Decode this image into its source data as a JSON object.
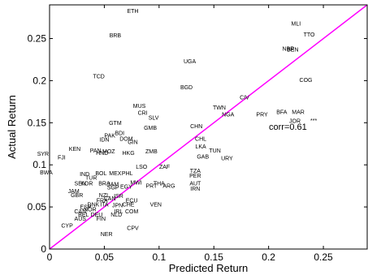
{
  "chart_data": {
    "type": "scatter",
    "title": "",
    "xlabel": "Predicted Return",
    "ylabel": "Actual Return",
    "xlim": [
      0,
      0.29
    ],
    "ylim": [
      0,
      0.29
    ],
    "xticks": [
      0,
      0.05,
      0.1,
      0.15,
      0.2,
      0.25
    ],
    "yticks": [
      0,
      0.05,
      0.1,
      0.15,
      0.2,
      0.25
    ],
    "xtick_labels": [
      "0",
      "0.05",
      "0.1",
      "0.15",
      "0.2",
      "0.25"
    ],
    "ytick_labels": [
      "0",
      "0.05",
      "0.1",
      "0.15",
      "0.2",
      "0.25"
    ],
    "grid": false,
    "legend": "none",
    "reference_line": {
      "x": [
        0,
        0.29
      ],
      "y": [
        0,
        0.29
      ],
      "color": "#ff00ff"
    },
    "annotation": "corr=0.61",
    "marker_text": "***",
    "points": [
      {
        "label": "ETH",
        "x": 0.076,
        "y": 0.283
      },
      {
        "label": "BRB",
        "x": 0.06,
        "y": 0.254
      },
      {
        "label": "MLI",
        "x": 0.225,
        "y": 0.268
      },
      {
        "label": "TTO",
        "x": 0.237,
        "y": 0.255
      },
      {
        "label": "NBR",
        "x": 0.218,
        "y": 0.238
      },
      {
        "label": "BEN",
        "x": 0.222,
        "y": 0.237
      },
      {
        "label": "UGA",
        "x": 0.128,
        "y": 0.223
      },
      {
        "label": "TCD",
        "x": 0.045,
        "y": 0.205
      },
      {
        "label": "COG",
        "x": 0.234,
        "y": 0.201
      },
      {
        "label": "BGD",
        "x": 0.125,
        "y": 0.192
      },
      {
        "label": "CIV",
        "x": 0.178,
        "y": 0.18
      },
      {
        "label": "MUS",
        "x": 0.082,
        "y": 0.17
      },
      {
        "label": "TWN",
        "x": 0.155,
        "y": 0.168
      },
      {
        "label": "BFA",
        "x": 0.212,
        "y": 0.163
      },
      {
        "label": "MAR",
        "x": 0.227,
        "y": 0.163
      },
      {
        "label": "CRI",
        "x": 0.085,
        "y": 0.162
      },
      {
        "label": "NGA",
        "x": 0.163,
        "y": 0.16
      },
      {
        "label": "PRY",
        "x": 0.194,
        "y": 0.16
      },
      {
        "label": "SLV",
        "x": 0.095,
        "y": 0.156
      },
      {
        "label": "JOR",
        "x": 0.224,
        "y": 0.152
      },
      {
        "label": "GTM",
        "x": 0.06,
        "y": 0.15
      },
      {
        "label": "GMB",
        "x": 0.092,
        "y": 0.144
      },
      {
        "label": "CHN",
        "x": 0.134,
        "y": 0.146
      },
      {
        "label": "BDI",
        "x": 0.064,
        "y": 0.138
      },
      {
        "label": "PAK",
        "x": 0.055,
        "y": 0.135
      },
      {
        "label": "IDN",
        "x": 0.05,
        "y": 0.13
      },
      {
        "label": "DOM",
        "x": 0.07,
        "y": 0.131
      },
      {
        "label": "GIN",
        "x": 0.076,
        "y": 0.127
      },
      {
        "label": "CHL",
        "x": 0.138,
        "y": 0.131
      },
      {
        "label": "LKA",
        "x": 0.138,
        "y": 0.122
      },
      {
        "label": "KEN",
        "x": 0.023,
        "y": 0.119
      },
      {
        "label": "PAN",
        "x": 0.042,
        "y": 0.117
      },
      {
        "label": "MOZ",
        "x": 0.054,
        "y": 0.116
      },
      {
        "label": "HND",
        "x": 0.048,
        "y": 0.114
      },
      {
        "label": "ZMB",
        "x": 0.093,
        "y": 0.116
      },
      {
        "label": "TUN",
        "x": 0.151,
        "y": 0.117
      },
      {
        "label": "SYR",
        "x": -0.006,
        "y": 0.113
      },
      {
        "label": "HKG",
        "x": 0.072,
        "y": 0.114
      },
      {
        "label": "FJI",
        "x": 0.011,
        "y": 0.109
      },
      {
        "label": "GAB",
        "x": 0.14,
        "y": 0.11
      },
      {
        "label": "URY",
        "x": 0.162,
        "y": 0.108
      },
      {
        "label": "LSO",
        "x": 0.084,
        "y": 0.098
      },
      {
        "label": "ZAF",
        "x": 0.105,
        "y": 0.098
      },
      {
        "label": "BWA",
        "x": -0.003,
        "y": 0.091
      },
      {
        "label": "IND",
        "x": 0.032,
        "y": 0.089
      },
      {
        "label": "BOL",
        "x": 0.047,
        "y": 0.09
      },
      {
        "label": "MEX",
        "x": 0.06,
        "y": 0.09
      },
      {
        "label": "PHL",
        "x": 0.071,
        "y": 0.09
      },
      {
        "label": "TZA",
        "x": 0.133,
        "y": 0.093
      },
      {
        "label": "TUR",
        "x": 0.038,
        "y": 0.085
      },
      {
        "label": "PER",
        "x": 0.133,
        "y": 0.087
      },
      {
        "label": "SEN",
        "x": 0.028,
        "y": 0.078
      },
      {
        "label": "KOR",
        "x": 0.034,
        "y": 0.078
      },
      {
        "label": "BRA",
        "x": 0.05,
        "y": 0.078
      },
      {
        "label": "JAM",
        "x": 0.058,
        "y": 0.077
      },
      {
        "label": "MWI",
        "x": 0.079,
        "y": 0.079
      },
      {
        "label": "THA",
        "x": 0.1,
        "y": 0.078
      },
      {
        "label": "AUT",
        "x": 0.133,
        "y": 0.078
      },
      {
        "label": "PRT",
        "x": 0.093,
        "y": 0.075
      },
      {
        "label": "ARG",
        "x": 0.109,
        "y": 0.075
      },
      {
        "label": "SGP",
        "x": 0.058,
        "y": 0.073
      },
      {
        "label": "EGY",
        "x": 0.07,
        "y": 0.074
      },
      {
        "label": "IRN",
        "x": 0.133,
        "y": 0.072
      },
      {
        "label": "JAM",
        "x": 0.022,
        "y": 0.069
      },
      {
        "label": "GBR",
        "x": 0.025,
        "y": 0.064
      },
      {
        "label": "NZL",
        "x": 0.05,
        "y": 0.064
      },
      {
        "label": "CAN",
        "x": 0.055,
        "y": 0.06
      },
      {
        "label": "ISR",
        "x": 0.063,
        "y": 0.063
      },
      {
        "label": "FRA",
        "x": 0.048,
        "y": 0.058
      },
      {
        "label": "ECU",
        "x": 0.075,
        "y": 0.058
      },
      {
        "label": "DNK",
        "x": 0.04,
        "y": 0.053
      },
      {
        "label": "ITA",
        "x": 0.05,
        "y": 0.053
      },
      {
        "label": "JPN",
        "x": 0.062,
        "y": 0.052
      },
      {
        "label": "CHE",
        "x": 0.072,
        "y": 0.053
      },
      {
        "label": "VEN",
        "x": 0.097,
        "y": 0.053
      },
      {
        "label": "ESP",
        "x": 0.033,
        "y": 0.05
      },
      {
        "label": "CAN",
        "x": 0.028,
        "y": 0.045
      },
      {
        "label": "NOR",
        "x": 0.037,
        "y": 0.047
      },
      {
        "label": "IRL",
        "x": 0.063,
        "y": 0.045
      },
      {
        "label": "COM",
        "x": 0.075,
        "y": 0.045
      },
      {
        "label": "BEL",
        "x": 0.031,
        "y": 0.041
      },
      {
        "label": "DEU",
        "x": 0.043,
        "y": 0.041
      },
      {
        "label": "NLD",
        "x": 0.061,
        "y": 0.041
      },
      {
        "label": "AUS",
        "x": 0.028,
        "y": 0.036
      },
      {
        "label": "FIN",
        "x": 0.047,
        "y": 0.036
      },
      {
        "label": "CYP",
        "x": 0.016,
        "y": 0.028
      },
      {
        "label": "CPV",
        "x": 0.076,
        "y": 0.025
      },
      {
        "label": "NER",
        "x": 0.052,
        "y": 0.018
      }
    ]
  }
}
